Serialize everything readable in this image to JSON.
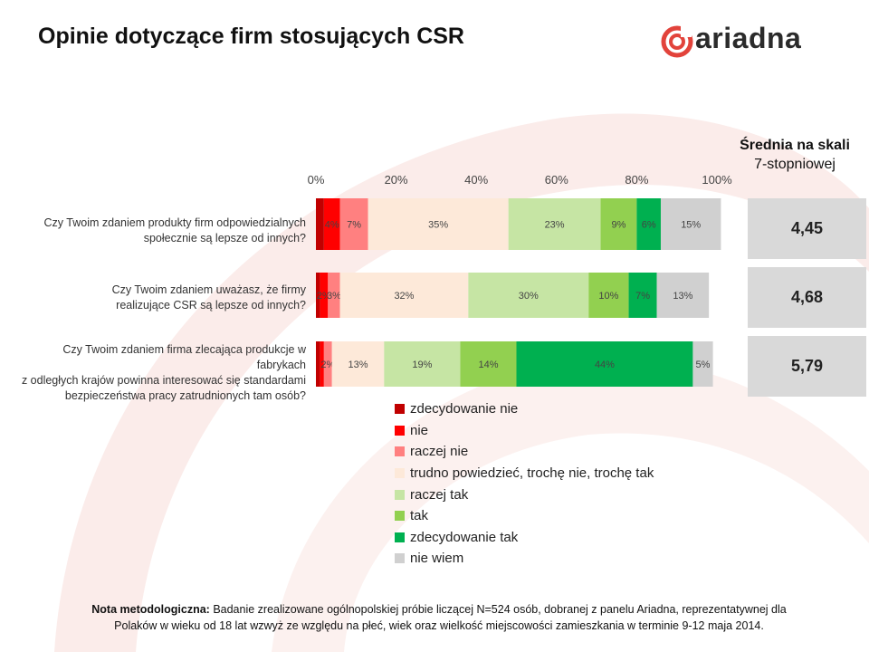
{
  "page": {
    "title": "Opinie dotyczące firm stosujących CSR",
    "logo_text": "ariadna",
    "avg_header_line1": "Średnia na skali",
    "avg_header_line2": "7-stopniowej"
  },
  "colors": {
    "zdecydowanie_nie": "#c00000",
    "nie": "#ff0000",
    "raczej_nie": "#ff8080",
    "trudno": "#fde9d9",
    "raczej_tak": "#c6e5a4",
    "tak": "#92d050",
    "zdecydowanie_tak": "#00b050",
    "nie_wiem": "#d0d0d0"
  },
  "chart_data": {
    "type": "bar",
    "orientation": "horizontal",
    "stacked": true,
    "xlim": [
      0,
      100
    ],
    "x_ticks": [
      "0%",
      "20%",
      "40%",
      "60%",
      "80%",
      "100%"
    ],
    "categories": [
      "Czy Twoim zdaniem produkty firm odpowiedzialnych społecznie są lepsze od innych?",
      "Czy Twoim zdaniem uważasz, że firmy realizujące CSR są lepsze od innych?",
      "Czy Twoim zdaniem firma zlecająca produkcje w fabrykach z odległych krajów powinna interesować się standardami bezpieczeństwa pracy zatrudnionych tam osób?"
    ],
    "category_lines": [
      [
        "Czy Twoim zdaniem produkty firm odpowiedzialnych",
        "społecznie są lepsze od innych?"
      ],
      [
        "Czy Twoim zdaniem uważasz, że firmy",
        "realizujące CSR są lepsze od innych?"
      ],
      [
        "Czy Twoim zdaniem firma zlecająca produkcje w fabrykach",
        "z odległych krajów powinna interesować się standardami",
        "bezpieczeństwa pracy zatrudnionych tam osób?"
      ]
    ],
    "series": [
      {
        "name": "zdecydowanie nie",
        "key": "zdecydowanie_nie",
        "values": [
          2,
          1,
          1
        ],
        "labels": [
          "",
          "",
          ""
        ]
      },
      {
        "name": "nie",
        "key": "nie",
        "values": [
          4,
          2,
          1
        ],
        "labels": [
          "4%",
          "2%",
          ""
        ]
      },
      {
        "name": "raczej nie",
        "key": "raczej_nie",
        "values": [
          7,
          3,
          2
        ],
        "labels": [
          "7%",
          "3%",
          "2%"
        ]
      },
      {
        "name": "trudno powiedzieć, trochę nie, trochę tak",
        "key": "trudno",
        "values": [
          35,
          32,
          13
        ],
        "labels": [
          "35%",
          "32%",
          "13%"
        ]
      },
      {
        "name": "raczej tak",
        "key": "raczej_tak",
        "values": [
          23,
          30,
          19
        ],
        "labels": [
          "23%",
          "30%",
          "19%"
        ]
      },
      {
        "name": "tak",
        "key": "tak",
        "values": [
          9,
          10,
          14
        ],
        "labels": [
          "9%",
          "10%",
          "14%"
        ]
      },
      {
        "name": "zdecydowanie tak",
        "key": "zdecydowanie_tak",
        "values": [
          6,
          7,
          44
        ],
        "labels": [
          "6%",
          "7%",
          "44%"
        ]
      },
      {
        "name": "nie wiem",
        "key": "nie_wiem",
        "values": [
          15,
          13,
          5
        ],
        "labels": [
          "15%",
          "13%",
          "5%"
        ]
      }
    ],
    "averages": [
      "4,45",
      "4,68",
      "5,79"
    ]
  },
  "legend": [
    "zdecydowanie nie",
    "nie",
    "raczej nie",
    "trudno powiedzieć, trochę nie, trochę tak",
    "raczej tak",
    "tak",
    "zdecydowanie tak",
    "nie wiem"
  ],
  "note": {
    "label": "Nota metodologiczna:",
    "line1": "Badanie zrealizowane ogólnopolskiej próbie liczącej N=524 osób, dobranej z panelu Ariadna, reprezentatywnej dla",
    "line2": "Polaków w wieku od 18 lat  wzwyż ze względu na płeć, wiek oraz wielkość miejscowości zamieszkania w terminie 9-12 maja 2014."
  }
}
